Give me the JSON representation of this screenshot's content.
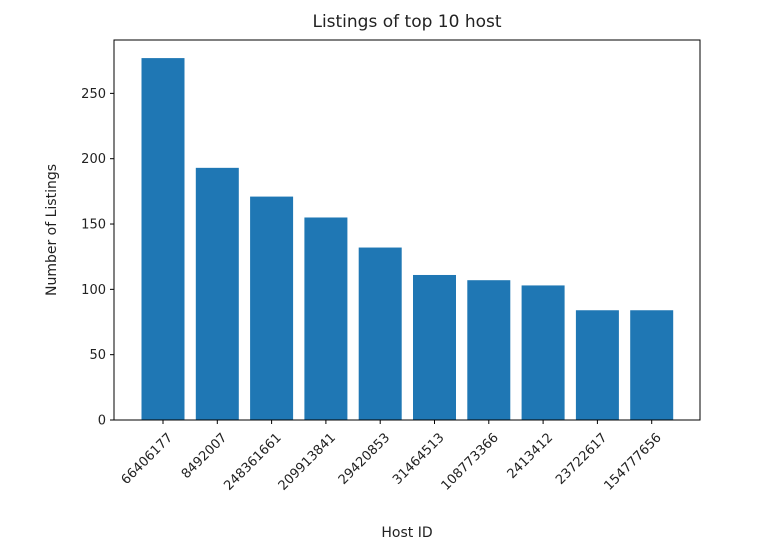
{
  "chart_data": {
    "type": "bar",
    "title": "Listings of top 10 host",
    "xlabel": "Host ID",
    "ylabel": "Number of Listings",
    "categories": [
      "66406177",
      "8492007",
      "248361661",
      "209913841",
      "29420853",
      "31464513",
      "108773366",
      "2413412",
      "23722617",
      "154777656"
    ],
    "values": [
      277,
      193,
      171,
      155,
      132,
      111,
      107,
      103,
      84,
      84
    ],
    "ylim": [
      0,
      290.85
    ],
    "yticks": [
      0,
      50,
      100,
      150,
      200,
      250
    ],
    "bar_color": "#1f77b4",
    "grid": false
  }
}
